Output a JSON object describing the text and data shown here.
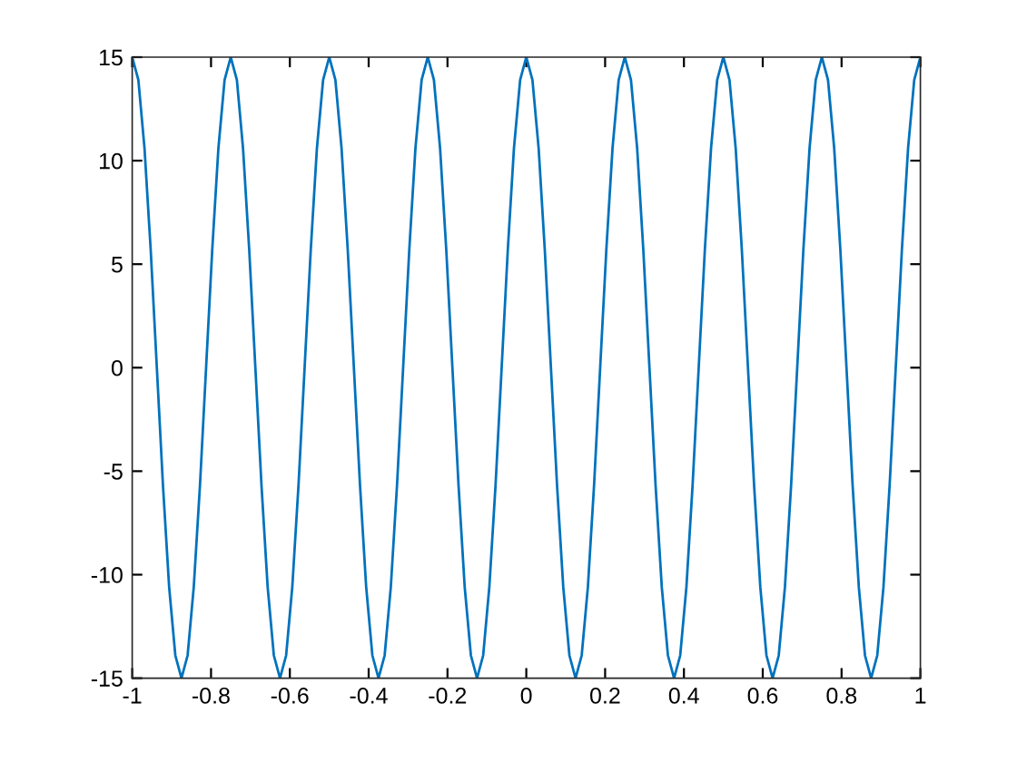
{
  "chart_data": {
    "type": "line",
    "x": [
      -1,
      -0.9844,
      -0.9688,
      -0.9531,
      -0.9375,
      -0.9219,
      -0.9063,
      -0.8906,
      -0.875,
      -0.8594,
      -0.8438,
      -0.8281,
      -0.8125,
      -0.7969,
      -0.7813,
      -0.7656,
      -0.75,
      -0.7344,
      -0.7188,
      -0.7031,
      -0.6875,
      -0.6719,
      -0.6563,
      -0.6406,
      -0.625,
      -0.6094,
      -0.5938,
      -0.5781,
      -0.5625,
      -0.5469,
      -0.5313,
      -0.5156,
      -0.5,
      -0.4844,
      -0.4688,
      -0.4531,
      -0.4375,
      -0.4219,
      -0.4063,
      -0.3906,
      -0.375,
      -0.3594,
      -0.3438,
      -0.3281,
      -0.3125,
      -0.2969,
      -0.2813,
      -0.2656,
      -0.25,
      -0.2344,
      -0.2188,
      -0.2031,
      -0.1875,
      -0.1719,
      -0.1563,
      -0.1406,
      -0.125,
      -0.1094,
      -0.0938,
      -0.0781,
      -0.0625,
      -0.0469,
      -0.0313,
      -0.0156,
      0,
      0.0156,
      0.0313,
      0.0469,
      0.0625,
      0.0781,
      0.0938,
      0.1094,
      0.125,
      0.1406,
      0.1563,
      0.1719,
      0.1875,
      0.2031,
      0.2188,
      0.2344,
      0.25,
      0.2656,
      0.2813,
      0.2969,
      0.3125,
      0.3281,
      0.3438,
      0.3594,
      0.375,
      0.3906,
      0.4063,
      0.4219,
      0.4375,
      0.4531,
      0.4688,
      0.4844,
      0.5,
      0.5156,
      0.5313,
      0.5469,
      0.5625,
      0.5781,
      0.5938,
      0.6094,
      0.625,
      0.6406,
      0.6563,
      0.6719,
      0.6875,
      0.7031,
      0.7188,
      0.7344,
      0.75,
      0.7656,
      0.7813,
      0.7969,
      0.8125,
      0.8281,
      0.8438,
      0.8594,
      0.875,
      0.8906,
      0.9063,
      0.9219,
      0.9375,
      0.9531,
      0.9688,
      0.9844,
      1
    ],
    "series": [
      {
        "color": "#0072bd",
        "values": [
          15,
          13.9,
          10.6,
          5.7,
          0,
          -5.7,
          -10.6,
          -13.9,
          -15,
          -13.9,
          -10.6,
          -5.7,
          0,
          5.7,
          10.6,
          13.9,
          15,
          13.9,
          10.6,
          5.7,
          0,
          -5.7,
          -10.6,
          -13.9,
          -15,
          -13.9,
          -10.6,
          -5.7,
          0,
          5.7,
          10.6,
          13.9,
          15,
          13.9,
          10.6,
          5.7,
          0,
          -5.7,
          -10.6,
          -13.9,
          -15,
          -13.9,
          -10.6,
          -5.7,
          0,
          5.7,
          10.6,
          13.9,
          15,
          13.9,
          10.6,
          5.7,
          0,
          -5.7,
          -10.6,
          -13.9,
          -15,
          -13.9,
          -10.6,
          -5.7,
          0,
          5.7,
          10.6,
          13.9,
          15,
          13.9,
          10.6,
          5.7,
          0,
          -5.7,
          -10.6,
          -13.9,
          -15,
          -13.9,
          -10.6,
          -5.7,
          0,
          5.7,
          10.6,
          13.9,
          15,
          13.9,
          10.6,
          5.7,
          0,
          -5.7,
          -10.6,
          -13.9,
          -15,
          -13.9,
          -10.6,
          -5.7,
          0,
          5.7,
          10.6,
          13.9,
          15,
          13.9,
          10.6,
          5.7,
          0,
          -5.7,
          -10.6,
          -13.9,
          -15,
          -13.9,
          -10.6,
          -5.7,
          0,
          5.7,
          10.6,
          13.9,
          15,
          13.9,
          10.6,
          5.7,
          0,
          -5.7,
          -10.6,
          -13.9,
          -15,
          -13.9,
          -10.6,
          -5.7,
          0,
          5.7,
          10.6,
          13.9,
          15
        ]
      }
    ],
    "xlim": [
      -1,
      1
    ],
    "xticks": [
      -1,
      -0.8,
      -0.6,
      -0.4,
      -0.2,
      0,
      0.2,
      0.4,
      0.6,
      0.8,
      1
    ],
    "ylim": [
      -15,
      15
    ],
    "yticks": [
      -15,
      -10,
      -5,
      0,
      5,
      10,
      15
    ],
    "grid": false,
    "marker": "none",
    "line_style": "solid"
  }
}
